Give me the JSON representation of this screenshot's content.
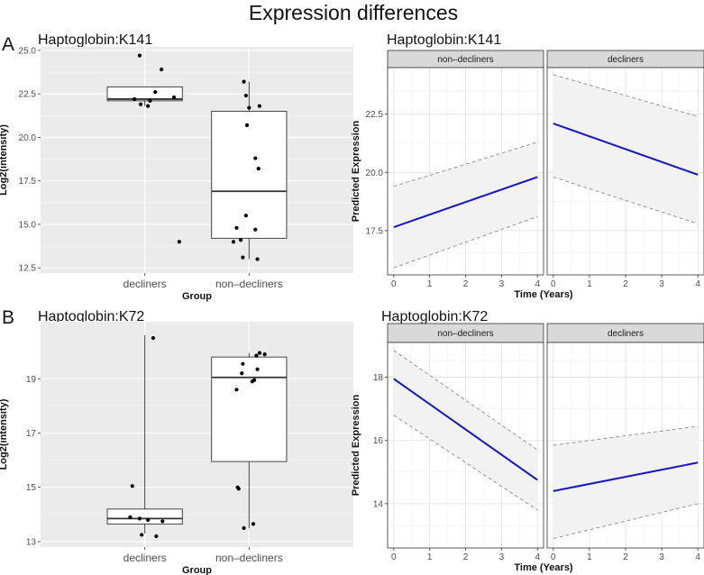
{
  "figure": {
    "title": "Expression differences",
    "panel_labels": [
      "A",
      "B"
    ]
  },
  "colors": {
    "panel_bg": "#ebebeb",
    "grid_major": "#ffffff",
    "line_blue": "#1515c8",
    "ribbon": "#f2f2f2",
    "strip_bg": "#d9d9d9"
  },
  "chart_data": [
    {
      "id": "a_box",
      "type": "box",
      "title": "Haptoglobin:K141",
      "xlabel": "Group",
      "ylabel": "Log2(intensity)",
      "categories": [
        "decliners",
        "non–decliners"
      ],
      "ylim": [
        12.2,
        25.2
      ],
      "yticks": [
        12.5,
        15.0,
        17.5,
        20.0,
        22.5,
        25.0
      ],
      "ytick_labels": [
        "12.5",
        "15.0",
        "17.5",
        "20.0",
        "22.5",
        "25.0"
      ],
      "boxes": [
        {
          "q1": 22.1,
          "median": 22.2,
          "q3": 22.9,
          "whisker_low": 21.8,
          "whisker_high": 22.9
        },
        {
          "q1": 14.2,
          "median": 16.9,
          "q3": 21.5,
          "whisker_low": 13.0,
          "whisker_high": 23.2
        }
      ],
      "points": [
        [
          [
            -0.05,
            24.7
          ],
          [
            0.16,
            23.9
          ],
          [
            0.1,
            22.6
          ],
          [
            -0.1,
            22.2
          ],
          [
            0.05,
            22.1
          ],
          [
            0.28,
            22.3
          ],
          [
            0.03,
            21.8
          ],
          [
            -0.04,
            21.9
          ],
          [
            0.33,
            14.0
          ]
        ],
        [
          [
            -0.05,
            23.2
          ],
          [
            -0.03,
            22.4
          ],
          [
            0.0,
            21.7
          ],
          [
            0.1,
            21.8
          ],
          [
            -0.02,
            20.7
          ],
          [
            0.06,
            18.8
          ],
          [
            0.09,
            18.2
          ],
          [
            -0.03,
            15.5
          ],
          [
            -0.12,
            14.8
          ],
          [
            0.06,
            14.7
          ],
          [
            -0.15,
            14.0
          ],
          [
            -0.08,
            14.1
          ],
          [
            -0.06,
            13.1
          ],
          [
            0.08,
            13.0
          ]
        ]
      ]
    },
    {
      "id": "a_trend",
      "type": "line",
      "title": "Haptoglobin:K141",
      "xlabel": "Time (Years)",
      "ylabel": "Predicted Expression",
      "x": [
        0,
        4
      ],
      "xticks": [
        0,
        1,
        2,
        3,
        4
      ],
      "xtick_labels": [
        "0",
        "1",
        "2",
        "3",
        "4"
      ],
      "ylim": [
        15.6,
        24.5
      ],
      "yticks": [
        17.5,
        20.0,
        22.5
      ],
      "ytick_labels": [
        "17.5",
        "20.0",
        "22.5"
      ],
      "facets": [
        {
          "label": "non–decliners",
          "fit": [
            17.65,
            19.8
          ],
          "upper": [
            19.4,
            21.3
          ],
          "lower": [
            15.9,
            18.1
          ]
        },
        {
          "label": "decliners",
          "fit": [
            22.1,
            19.9
          ],
          "upper": [
            24.2,
            22.4
          ],
          "lower": [
            19.8,
            17.8
          ]
        }
      ]
    },
    {
      "id": "b_box",
      "type": "box",
      "title": "Haptoglobin:K72",
      "xlabel": "Group",
      "ylabel": "Log2(intensity)",
      "categories": [
        "decliners",
        "non–decliners"
      ],
      "ylim": [
        12.8,
        21.1
      ],
      "yticks": [
        13,
        15,
        17,
        19
      ],
      "ytick_labels": [
        "13",
        "15",
        "17",
        "19"
      ],
      "boxes": [
        {
          "q1": 13.65,
          "median": 13.85,
          "q3": 14.2,
          "whisker_low": 13.3,
          "whisker_high": 20.6
        },
        {
          "q1": 15.95,
          "median": 19.05,
          "q3": 19.8,
          "whisker_low": 13.5,
          "whisker_high": 19.95
        }
      ],
      "points": [
        [
          [
            0.08,
            20.5
          ],
          [
            -0.12,
            15.05
          ],
          [
            -0.14,
            13.9
          ],
          [
            -0.05,
            13.85
          ],
          [
            0.03,
            13.8
          ],
          [
            0.17,
            13.75
          ],
          [
            -0.03,
            13.25
          ],
          [
            0.11,
            13.2
          ]
        ],
        [
          [
            0.1,
            19.95
          ],
          [
            0.15,
            19.9
          ],
          [
            0.07,
            19.85
          ],
          [
            -0.06,
            19.55
          ],
          [
            0.08,
            19.35
          ],
          [
            -0.07,
            19.2
          ],
          [
            0.05,
            18.95
          ],
          [
            0.03,
            18.9
          ],
          [
            -0.12,
            18.6
          ],
          [
            -0.11,
            15.0
          ],
          [
            -0.1,
            14.95
          ],
          [
            0.04,
            13.65
          ],
          [
            -0.05,
            13.5
          ]
        ]
      ]
    },
    {
      "id": "b_trend",
      "type": "line",
      "title": "Haptoglobin:K72",
      "xlabel": "Time (Years)",
      "ylabel": "Predicted Expression",
      "x": [
        0,
        4
      ],
      "xticks": [
        0,
        1,
        2,
        3,
        4
      ],
      "xtick_labels": [
        "0",
        "1",
        "2",
        "3",
        "4"
      ],
      "ylim": [
        12.6,
        19.1
      ],
      "yticks": [
        14,
        16,
        18
      ],
      "ytick_labels": [
        "14",
        "16",
        "18"
      ],
      "facets": [
        {
          "label": "non–decliners",
          "fit": [
            17.95,
            14.75
          ],
          "upper": [
            18.85,
            15.7
          ],
          "lower": [
            16.8,
            13.8
          ]
        },
        {
          "label": "decliners",
          "fit": [
            14.4,
            15.3
          ],
          "upper": [
            15.85,
            16.45
          ],
          "lower": [
            12.9,
            14.0
          ]
        }
      ]
    }
  ]
}
